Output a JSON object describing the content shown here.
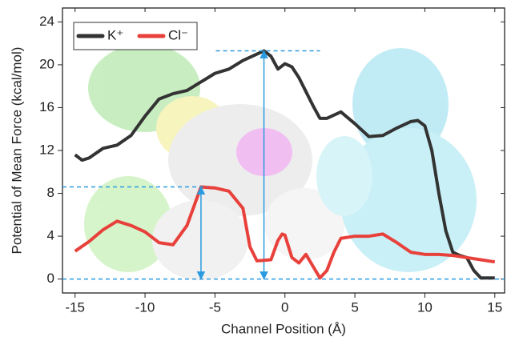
{
  "chart_data": {
    "type": "line",
    "x_label": "Channel Position (Å)",
    "y_label": "Potential of Mean Force (kcal/mol)",
    "xlim": [
      -15.9,
      15.7
    ],
    "xticks": [
      -15,
      -10,
      -5,
      0,
      5,
      10,
      15
    ],
    "ylim": [
      -1.3,
      25.3
    ],
    "yticks": [
      0,
      4,
      8,
      12,
      16,
      20,
      24
    ],
    "series": [
      {
        "name": "K⁺",
        "color": "#333333",
        "x": [
          -15,
          -14.5,
          -14,
          -13,
          -12,
          -11,
          -10,
          -9,
          -8,
          -7,
          -6,
          -5,
          -4,
          -3,
          -2,
          -1.5,
          -1,
          -0.5,
          0,
          0.5,
          1,
          2,
          2.5,
          3,
          4,
          5,
          6,
          7,
          8,
          9,
          9.5,
          10,
          10.5,
          11,
          11.5,
          12,
          12.5,
          13,
          13.5,
          14,
          14.5,
          15
        ],
        "values": [
          11.6,
          11.1,
          11.3,
          12.2,
          12.5,
          13.4,
          15.2,
          16.8,
          17.3,
          17.6,
          18.4,
          19.2,
          19.6,
          20.4,
          21.0,
          21.3,
          20.8,
          19.6,
          20.1,
          19.8,
          18.8,
          16.2,
          15.0,
          15.0,
          15.6,
          14.5,
          13.3,
          13.4,
          14.1,
          14.7,
          14.8,
          14.3,
          12.0,
          8.0,
          4.5,
          2.5,
          2.2,
          2.0,
          0.8,
          0.1,
          0.1,
          0.1
        ]
      },
      {
        "name": "Cl⁻",
        "color": "#e8413c",
        "x": [
          -15,
          -14,
          -13,
          -12,
          -11,
          -10,
          -9,
          -8,
          -7,
          -6,
          -5,
          -4,
          -3,
          -2.5,
          -2,
          -1,
          -0.5,
          -0.2,
          0,
          0.5,
          1,
          1.5,
          2,
          2.5,
          3,
          3.5,
          4,
          5,
          6,
          7,
          8,
          9,
          10,
          11,
          12,
          13,
          14,
          15
        ],
        "values": [
          2.6,
          3.5,
          4.6,
          5.4,
          5.0,
          4.4,
          3.4,
          3.2,
          5.0,
          8.6,
          8.5,
          8.2,
          6.6,
          3.0,
          1.7,
          1.8,
          3.6,
          4.2,
          4.1,
          2.0,
          1.5,
          2.3,
          1.2,
          0.1,
          0.8,
          2.5,
          3.8,
          4.0,
          4.0,
          4.2,
          3.4,
          2.5,
          2.3,
          2.3,
          2.2,
          2.0,
          1.8,
          1.6
        ]
      }
    ],
    "legend": "upper left",
    "annotation_color": "#2a9be0"
  }
}
